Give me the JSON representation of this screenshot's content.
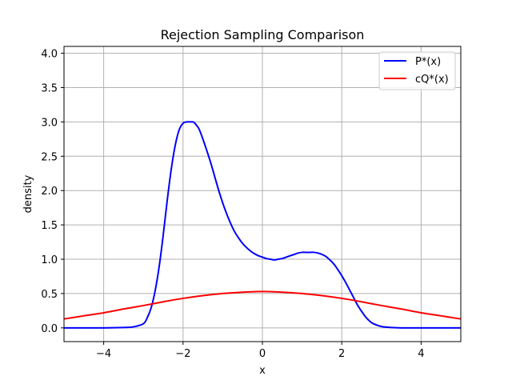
{
  "chart_data": {
    "type": "line",
    "title": "Rejection Sampling Comparison",
    "xlabel": "x",
    "ylabel": "density",
    "xlim": [
      -5,
      5
    ],
    "ylim": [
      -0.2,
      4.1
    ],
    "grid": true,
    "legend_position": "top-right",
    "x_ticks": [
      -4,
      -2,
      0,
      2,
      4
    ],
    "x_tick_labels": [
      "−4",
      "−2",
      "0",
      "2",
      "4"
    ],
    "y_ticks": [
      0,
      0.5,
      1,
      1.5,
      2,
      2.5,
      3,
      3.5,
      4
    ],
    "y_tick_labels": [
      "0.0",
      "0.5",
      "1.0",
      "1.5",
      "2.0",
      "2.5",
      "3.0",
      "3.5",
      "4.0"
    ],
    "series": [
      {
        "name": "P*(x)",
        "color": "#0000ff",
        "x": [
          -5,
          -4,
          -3.5,
          -3.25,
          -3,
          -2.9,
          -2.8,
          -2.7,
          -2.6,
          -2.5,
          -2.4,
          -2.3,
          -2.2,
          -2.1,
          -2,
          -1.9,
          -1.8,
          -1.75,
          -1.7,
          -1.6,
          -1.5,
          -1.4,
          -1.3,
          -1.2,
          -1.1,
          -1,
          -0.9,
          -0.8,
          -0.7,
          -0.6,
          -0.5,
          -0.4,
          -0.3,
          -0.2,
          -0.1,
          0,
          0.1,
          0.2,
          0.3,
          0.4,
          0.5,
          0.6,
          0.7,
          0.8,
          0.9,
          1,
          1.1,
          1.2,
          1.3,
          1.4,
          1.5,
          1.6,
          1.7,
          1.8,
          1.9,
          2,
          2.1,
          2.2,
          2.3,
          2.4,
          2.5,
          2.6,
          2.7,
          2.8,
          3,
          3.25,
          3.5,
          4,
          5
        ],
        "y": [
          0,
          0,
          0.005,
          0.015,
          0.06,
          0.15,
          0.3,
          0.55,
          0.9,
          1.35,
          1.85,
          2.3,
          2.65,
          2.88,
          2.98,
          3.0,
          3.0,
          3.0,
          2.98,
          2.9,
          2.75,
          2.58,
          2.4,
          2.2,
          2.0,
          1.82,
          1.66,
          1.52,
          1.4,
          1.31,
          1.23,
          1.17,
          1.12,
          1.08,
          1.05,
          1.03,
          1.01,
          1.0,
          0.99,
          1.0,
          1.01,
          1.03,
          1.05,
          1.07,
          1.09,
          1.1,
          1.1,
          1.1,
          1.1,
          1.09,
          1.07,
          1.04,
          0.99,
          0.93,
          0.85,
          0.76,
          0.66,
          0.55,
          0.44,
          0.33,
          0.24,
          0.16,
          0.1,
          0.06,
          0.02,
          0.005,
          0,
          0,
          0
        ]
      },
      {
        "name": "cQ*(x)",
        "color": "#ff0000",
        "x": [
          -5,
          -4.5,
          -4,
          -3.5,
          -3,
          -2.5,
          -2,
          -1.5,
          -1,
          -0.5,
          0,
          0.5,
          1,
          1.5,
          2,
          2.5,
          3,
          3.5,
          4,
          4.5,
          5
        ],
        "y": [
          0.13,
          0.175,
          0.22,
          0.275,
          0.325,
          0.38,
          0.43,
          0.47,
          0.5,
          0.52,
          0.53,
          0.52,
          0.5,
          0.47,
          0.43,
          0.38,
          0.325,
          0.275,
          0.22,
          0.175,
          0.13
        ]
      }
    ]
  }
}
